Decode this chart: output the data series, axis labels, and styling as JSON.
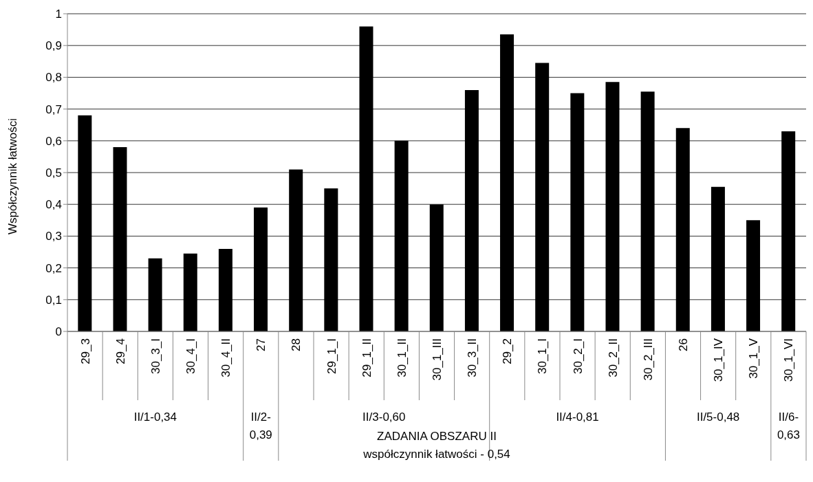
{
  "chart_data": {
    "type": "bar",
    "ylabel": "Współczynnik łatwości",
    "xlabel": "ZADANIA OBSZARU II",
    "categories": [
      "29_3",
      "29_4",
      "30_3_I",
      "30_4_I",
      "30_4_II",
      "27",
      "28",
      "29_1_I",
      "29_1_II",
      "30_1_II",
      "30_1_III",
      "30_3_II",
      "29_2",
      "30_1_I",
      "30_2_I",
      "30_2_II",
      "30_2_III",
      "26",
      "30_1_IV",
      "30_1_V",
      "30_1_VI"
    ],
    "values": [
      0.68,
      0.58,
      0.23,
      0.245,
      0.26,
      0.39,
      0.51,
      0.45,
      0.96,
      0.6,
      0.4,
      0.76,
      0.935,
      0.845,
      0.75,
      0.785,
      0.755,
      0.64,
      0.455,
      0.35,
      0.63
    ],
    "color": "#000000",
    "ylim": [
      0,
      1
    ],
    "yticks": [
      0,
      {
        "value": 0.1,
        "label": "0,1"
      },
      {
        "value": 0.2,
        "label": "0,2"
      },
      {
        "value": 0.3,
        "label": "0,3"
      },
      {
        "value": 0.4,
        "label": "0,4"
      },
      {
        "value": 0.5,
        "label": "0,5"
      },
      {
        "value": 0.6,
        "label": "0,6"
      },
      {
        "value": 0.7,
        "label": "0,7"
      },
      {
        "value": 0.8,
        "label": "0,8"
      },
      {
        "value": 0.9,
        "label": "0,9"
      },
      1
    ],
    "grid": "y",
    "legend": false,
    "annotations": [
      "II/1-0,34",
      "II/2-0,39",
      "II/3-0,60",
      "II/4-0,81",
      "II/5-0,48",
      "II/6-0,63",
      "współczynnik łatwości - 0,54"
    ]
  }
}
